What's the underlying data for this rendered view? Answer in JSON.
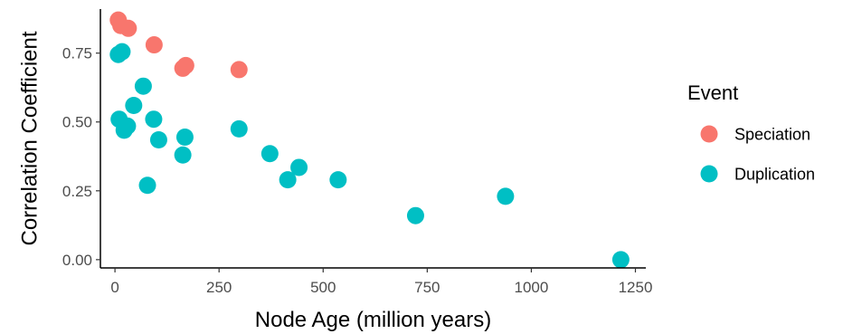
{
  "chart_data": {
    "type": "scatter",
    "xlabel": "Node Age (million years)",
    "ylabel": "Correlation Coefficient",
    "xlim": [
      -35,
      1275
    ],
    "ylim": [
      -0.03,
      0.91
    ],
    "x_ticks": [
      0,
      250,
      500,
      750,
      1000,
      1250
    ],
    "x_tick_labels": [
      "0",
      "250",
      "500",
      "750",
      "1000",
      "1250"
    ],
    "y_ticks": [
      0.0,
      0.25,
      0.5,
      0.75
    ],
    "y_tick_labels": [
      "0.00",
      "0.25",
      "0.50",
      "0.75"
    ],
    "grid": false,
    "legend": {
      "title": "Event",
      "position": "right",
      "entries": [
        {
          "label": "Speciation",
          "color": "#F8766D"
        },
        {
          "label": "Duplication",
          "color": "#00BFC4"
        }
      ]
    },
    "series": [
      {
        "name": "Speciation",
        "color": "#F8766D",
        "points": [
          {
            "x": 8,
            "y": 0.87
          },
          {
            "x": 14,
            "y": 0.85
          },
          {
            "x": 32,
            "y": 0.84
          },
          {
            "x": 94,
            "y": 0.78
          },
          {
            "x": 163,
            "y": 0.695
          },
          {
            "x": 170,
            "y": 0.705
          },
          {
            "x": 298,
            "y": 0.69
          }
        ]
      },
      {
        "name": "Duplication",
        "color": "#00BFC4",
        "points": [
          {
            "x": 8,
            "y": 0.745
          },
          {
            "x": 17,
            "y": 0.755
          },
          {
            "x": 10,
            "y": 0.51
          },
          {
            "x": 22,
            "y": 0.47
          },
          {
            "x": 30,
            "y": 0.485
          },
          {
            "x": 45,
            "y": 0.56
          },
          {
            "x": 68,
            "y": 0.63
          },
          {
            "x": 78,
            "y": 0.27
          },
          {
            "x": 93,
            "y": 0.51
          },
          {
            "x": 105,
            "y": 0.435
          },
          {
            "x": 163,
            "y": 0.38
          },
          {
            "x": 168,
            "y": 0.445
          },
          {
            "x": 298,
            "y": 0.475
          },
          {
            "x": 372,
            "y": 0.385
          },
          {
            "x": 415,
            "y": 0.29
          },
          {
            "x": 442,
            "y": 0.335
          },
          {
            "x": 536,
            "y": 0.29
          },
          {
            "x": 722,
            "y": 0.16
          },
          {
            "x": 938,
            "y": 0.23
          },
          {
            "x": 1215,
            "y": 0.0
          }
        ]
      }
    ]
  }
}
